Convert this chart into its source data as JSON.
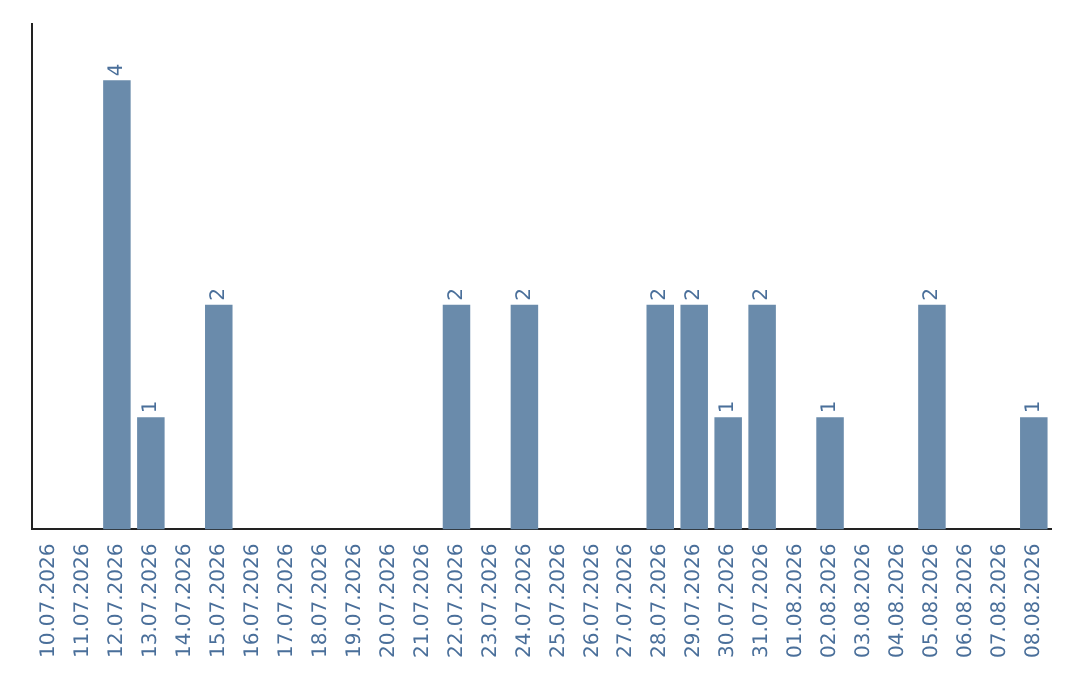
{
  "chart_data": {
    "type": "bar",
    "categories": [
      "10.07.2026",
      "11.07.2026",
      "12.07.2026",
      "13.07.2026",
      "14.07.2026",
      "15.07.2026",
      "16.07.2026",
      "17.07.2026",
      "18.07.2026",
      "19.07.2026",
      "20.07.2026",
      "21.07.2026",
      "22.07.2026",
      "23.07.2026",
      "24.07.2026",
      "25.07.2026",
      "26.07.2026",
      "27.07.2026",
      "28.07.2026",
      "29.07.2026",
      "30.07.2026",
      "31.07.2026",
      "01.08.2026",
      "02.08.2026",
      "03.08.2026",
      "04.08.2026",
      "05.08.2026",
      "06.08.2026",
      "07.08.2026",
      "08.08.2026"
    ],
    "values": [
      null,
      null,
      4,
      1,
      null,
      2,
      null,
      null,
      null,
      null,
      null,
      null,
      2,
      null,
      2,
      null,
      null,
      null,
      2,
      2,
      1,
      2,
      null,
      1,
      null,
      null,
      2,
      null,
      null,
      1
    ],
    "color": "#6a8bab",
    "data_labels": true,
    "grid": false,
    "legend": false,
    "tick_labels": "x"
  }
}
